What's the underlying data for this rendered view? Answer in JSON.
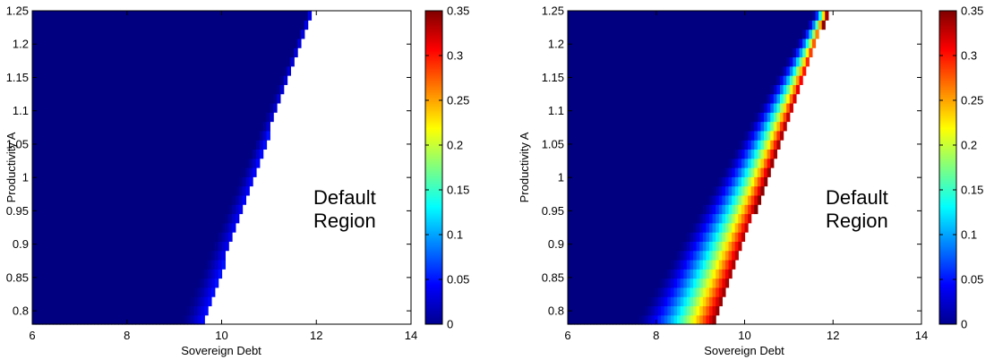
{
  "chart_data": [
    {
      "type": "heatmap",
      "title": "",
      "xlabel": "Sovereign Debt",
      "ylabel": "Productivity A",
      "xlim": [
        6,
        14
      ],
      "ylim": [
        0.78,
        1.25
      ],
      "xticks": [
        "6",
        "8",
        "10",
        "12",
        "14"
      ],
      "yticks": [
        "0.8",
        "0.85",
        "0.9",
        "0.95",
        "1",
        "1.05",
        "1.1",
        "1.15",
        "1.2",
        "1.25"
      ],
      "colorbar": {
        "min": 0,
        "max": 0.35,
        "ticks": [
          "0",
          "0.05",
          "0.1",
          "0.15",
          "0.2",
          "0.25",
          "0.3",
          "0.35"
        ]
      },
      "default_boundary": {
        "A": [
          0.78,
          1.25
        ],
        "debt": [
          9.6,
          11.9
        ]
      },
      "spread_band_width_debt": [
        0.5,
        0.05
      ],
      "spread_max": 0.05,
      "annotation": [
        "Default",
        "Region"
      ]
    },
    {
      "type": "heatmap",
      "title": "",
      "xlabel": "Sovereign Debt",
      "ylabel": "Productivity A",
      "xlim": [
        6,
        14
      ],
      "ylim": [
        0.78,
        1.25
      ],
      "xticks": [
        "6",
        "8",
        "10",
        "12",
        "14"
      ],
      "yticks": [
        "0.8",
        "0.85",
        "0.9",
        "0.95",
        "1",
        "1.05",
        "1.1",
        "1.15",
        "1.2",
        "1.25"
      ],
      "colorbar": {
        "min": 0,
        "max": 0.35,
        "ticks": [
          "0",
          "0.05",
          "0.1",
          "0.15",
          "0.2",
          "0.25",
          "0.3",
          "0.35"
        ]
      },
      "default_boundary": {
        "A": [
          0.78,
          1.25
        ],
        "debt": [
          9.3,
          11.9
        ]
      },
      "spread_band_width_debt": [
        1.8,
        0.3
      ],
      "spread_max": 0.35,
      "annotation": [
        "Default",
        "Region"
      ]
    }
  ]
}
